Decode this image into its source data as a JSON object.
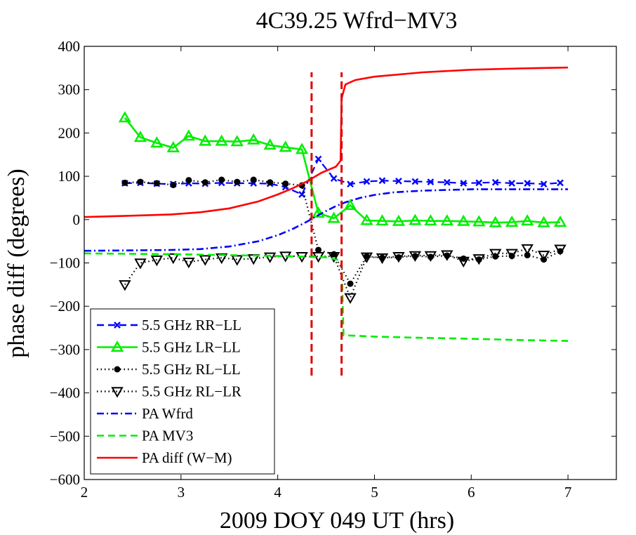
{
  "chart_data": {
    "type": "line",
    "title": "4C39.25 Wfrd−MV3",
    "xlabel": "2009 DOY 049 UT (hrs)",
    "ylabel": "phase diff (degrees)",
    "xlim": [
      2,
      7.5
    ],
    "ylim": [
      -600,
      400
    ],
    "xticks": [
      2,
      3,
      4,
      5,
      6,
      7
    ],
    "yticks": [
      -600,
      -500,
      -400,
      -300,
      -200,
      -100,
      0,
      100,
      200,
      300,
      400
    ],
    "xtick_labels": [
      "2",
      "3",
      "4",
      "5",
      "6",
      "7"
    ],
    "ytick_labels": [
      "−600",
      "−500",
      "−400",
      "−300",
      "−200",
      "−100",
      "0",
      "100",
      "200",
      "300",
      "400"
    ],
    "grid": false,
    "legend_position": "bottom-left",
    "series": [
      {
        "name": "5.5 GHz RR−LL",
        "color": "#0000ff",
        "line_style": "dashed",
        "marker": "x",
        "x": [
          2.42,
          2.58,
          2.75,
          2.92,
          3.08,
          3.25,
          3.42,
          3.58,
          3.75,
          3.92,
          4.08,
          4.25,
          4.42,
          4.58,
          4.75,
          4.92,
          5.08,
          5.25,
          5.42,
          5.58,
          5.75,
          5.92,
          6.08,
          6.25,
          6.42,
          6.58,
          6.75,
          6.92
        ],
        "y": [
          84,
          85,
          83,
          82,
          84,
          83,
          85,
          84,
          84,
          83,
          75,
          58,
          140,
          95,
          82,
          88,
          90,
          89,
          88,
          87,
          86,
          84,
          85,
          86,
          84,
          84,
          82,
          85
        ]
      },
      {
        "name": "5.5 GHz LR−LL",
        "color": "#00ee00",
        "line_style": "solid",
        "marker": "triangle-up",
        "x": [
          2.42,
          2.58,
          2.75,
          2.92,
          3.08,
          3.25,
          3.42,
          3.58,
          3.75,
          3.92,
          4.08,
          4.25,
          4.42,
          4.58,
          4.75,
          4.92,
          5.08,
          5.25,
          5.42,
          5.58,
          5.75,
          5.92,
          6.08,
          6.25,
          6.42,
          6.58,
          6.75,
          6.92
        ],
        "y": [
          235,
          190,
          177,
          166,
          193,
          181,
          181,
          180,
          184,
          172,
          167,
          162,
          15,
          3,
          33,
          -2,
          -3,
          -4,
          -2,
          -3,
          -3,
          -4,
          -5,
          -7,
          -6,
          -3,
          -7,
          -6
        ]
      },
      {
        "name": "5.5 GHz RL−LL",
        "color": "#000000",
        "line_style": "dotted",
        "marker": "circle",
        "x": [
          2.42,
          2.58,
          2.75,
          2.92,
          3.08,
          3.25,
          3.42,
          3.58,
          3.75,
          3.92,
          4.08,
          4.25,
          4.42,
          4.58,
          4.75,
          4.92,
          5.08,
          5.25,
          5.42,
          5.58,
          5.75,
          5.92,
          6.08,
          6.25,
          6.42,
          6.58,
          6.75,
          6.92
        ],
        "y": [
          85,
          87,
          84,
          80,
          91,
          86,
          92,
          87,
          92,
          86,
          83,
          79,
          -70,
          -80,
          -148,
          -85,
          -88,
          -87,
          -84,
          -86,
          -83,
          -90,
          -92,
          -85,
          -84,
          -82,
          -92,
          -73
        ]
      },
      {
        "name": "5.5 GHz RL−LR",
        "color": "#000000",
        "line_style": "dotted",
        "marker": "triangle-down",
        "x": [
          2.42,
          2.58,
          2.75,
          2.92,
          3.08,
          3.25,
          3.42,
          3.58,
          3.75,
          3.92,
          4.08,
          4.25,
          4.42,
          4.58,
          4.75,
          4.92,
          5.08,
          5.25,
          5.42,
          5.58,
          5.75,
          5.92,
          6.08,
          6.25,
          6.42,
          6.58,
          6.75,
          6.92
        ],
        "y": [
          -150,
          -100,
          -93,
          -88,
          -98,
          -92,
          -88,
          -92,
          -90,
          -86,
          -84,
          -85,
          -85,
          -85,
          -180,
          -86,
          -88,
          -85,
          -83,
          -83,
          -81,
          -96,
          -90,
          -78,
          -78,
          -67,
          -82,
          -68
        ]
      },
      {
        "name": "PA Wfrd",
        "color": "#0000ff",
        "line_style": "dashdot",
        "marker": "none",
        "x": [
          2.0,
          2.5,
          2.9,
          3.2,
          3.5,
          3.8,
          4.0,
          4.15,
          4.3,
          4.4,
          4.5,
          4.6,
          4.7,
          4.85,
          5.0,
          5.2,
          5.5,
          6.0,
          6.5,
          7.0
        ],
        "y": [
          -72,
          -71,
          -70,
          -68,
          -62,
          -50,
          -36,
          -22,
          -5,
          8,
          20,
          31,
          40,
          50,
          57,
          63,
          67,
          70,
          70,
          70
        ]
      },
      {
        "name": "PA MV3",
        "color": "#00ee00",
        "line_style": "dashed",
        "marker": "none",
        "x": [
          2.0,
          3.0,
          4.0,
          4.5,
          4.66,
          4.68,
          5.0,
          5.5,
          6.0,
          6.5,
          7.0
        ],
        "y": [
          -78,
          -80,
          -84,
          -87,
          -95,
          -267,
          -270,
          -273,
          -275,
          -278,
          -280
        ]
      },
      {
        "name": "PA diff (W−M)",
        "color": "#ff0000",
        "line_style": "solid",
        "marker": "none",
        "x": [
          2.0,
          2.5,
          2.9,
          3.2,
          3.5,
          3.8,
          4.0,
          4.15,
          4.3,
          4.45,
          4.6,
          4.65,
          4.66,
          4.7,
          4.8,
          5.0,
          5.5,
          6.0,
          6.5,
          7.0
        ],
        "y": [
          6,
          9,
          12,
          17,
          26,
          42,
          58,
          72,
          88,
          108,
          122,
          136,
          280,
          312,
          322,
          330,
          340,
          346,
          349,
          351
        ]
      }
    ],
    "vertical_lines": [
      {
        "x": 4.35,
        "y_range": [
          -360,
          340
        ],
        "color": "#dd0000",
        "line_style": "dashed"
      },
      {
        "x": 4.66,
        "y_range": [
          -360,
          340
        ],
        "color": "#dd0000",
        "line_style": "dashed"
      }
    ]
  }
}
